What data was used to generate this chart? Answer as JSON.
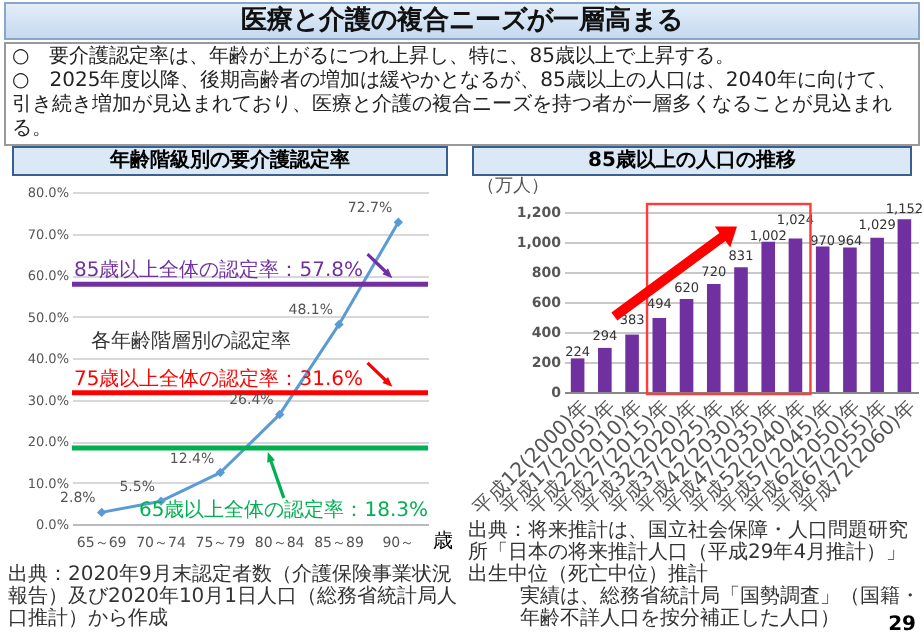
{
  "chart_data": [
    {
      "type": "other",
      "title": "医療と介護の複合ニーズが一層高まる",
      "annotations": [
        "○　要介護認定率は、年齢が上がるにつれ上昇し、特に、85歳以上で上昇する。",
        "○　2025年度以降、後期高齢者の増加は緩やかとなるが、85歳以上の人口は、2040年に向けて、引き続き増加が見込まれており、医療と介護の複合ニーズを持つ者が一層多くなることが見込まれる。",
        "29"
      ]
    },
    {
      "type": "line",
      "title": "年齢階級別の要介護認定率",
      "xlabel": "歳",
      "categories": [
        "65～69",
        "70～74",
        "75～79",
        "80～84",
        "85～89",
        "90～"
      ],
      "series": [
        {
          "name": "各年齢階層別の認定率",
          "color": "#5b9bd5",
          "values": [
            2.8,
            5.5,
            12.4,
            26.4,
            48.1,
            72.7
          ],
          "value_labels": [
            "2.8%",
            "5.5%",
            "12.4%",
            "26.4%",
            "48.1%",
            "72.7%"
          ]
        }
      ],
      "ylim": [
        0,
        80
      ],
      "yticks": [
        {
          "value": 0,
          "label": "0.0%"
        },
        {
          "value": 10,
          "label": "10.0%"
        },
        {
          "value": 20,
          "label": "20.0%"
        },
        {
          "value": 30,
          "label": "30.0%"
        },
        {
          "value": 40,
          "label": "40.0%"
        },
        {
          "value": 50,
          "label": "50.0%"
        },
        {
          "value": 60,
          "label": "60.0%"
        },
        {
          "value": 70,
          "label": "70.0%"
        },
        {
          "value": 80,
          "label": "80.0%"
        }
      ],
      "grid": "y",
      "marker": "diamond",
      "ref_lines": [
        {
          "axis": "y",
          "value": 57.8,
          "label": "85歳以上全体の認定率：57.8%",
          "color": "#7030a0"
        },
        {
          "axis": "y",
          "value": 31.6,
          "label": "75歳以上全体の認定率：31.6%",
          "color": "#ff0000"
        },
        {
          "axis": "y",
          "value": 18.3,
          "label": "65歳以上全体の認定率：18.3%",
          "color": "#00b050"
        }
      ],
      "annotations": [
        "出典：2020年9月末認定者数（介護保険事業状況報告）及び2020年10月1日人口（総務省統計局人口推計）から作成"
      ]
    },
    {
      "type": "bar",
      "title": "85歳以上の人口の推移",
      "ylabel": "（万人）",
      "categories": [
        "平成12(2000)年",
        "平成17(2005)年",
        "平成22(2010)年",
        "平成27(2015)年",
        "平成32(2020)年",
        "平成37(2025)年",
        "平成42(2030)年",
        "平成47(2035)年",
        "平成52(2040)年",
        "平成57(2045)年",
        "平成62(2050)年",
        "平成67(2055)年",
        "平成72(2060)年"
      ],
      "values": [
        224,
        294,
        383,
        494,
        620,
        720,
        831,
        1002,
        1024,
        970,
        964,
        1029,
        1152
      ],
      "value_labels": [
        "224",
        "294",
        "383",
        "494",
        "620",
        "720",
        "831",
        "1,002",
        "1,024",
        "970",
        "964",
        "1,029",
        "1,152"
      ],
      "color": "#7030a0",
      "ylim": [
        0,
        1200
      ],
      "yticks": [
        0,
        200,
        400,
        600,
        800,
        {
          "value": 1000,
          "label": "1,000"
        },
        {
          "value": 1200,
          "label": "1,200"
        }
      ],
      "grid": "y",
      "annotations": [
        "出典：将来推計は、国立社会保障・人口問題研究所「日本の将来推計人口（平成29年4月推計）」出生中位（死亡中位）推計",
        "実績は、総務省統計局「国勢調査」（国籍・年齢不詳人口を按分補正した人口）"
      ]
    }
  ]
}
